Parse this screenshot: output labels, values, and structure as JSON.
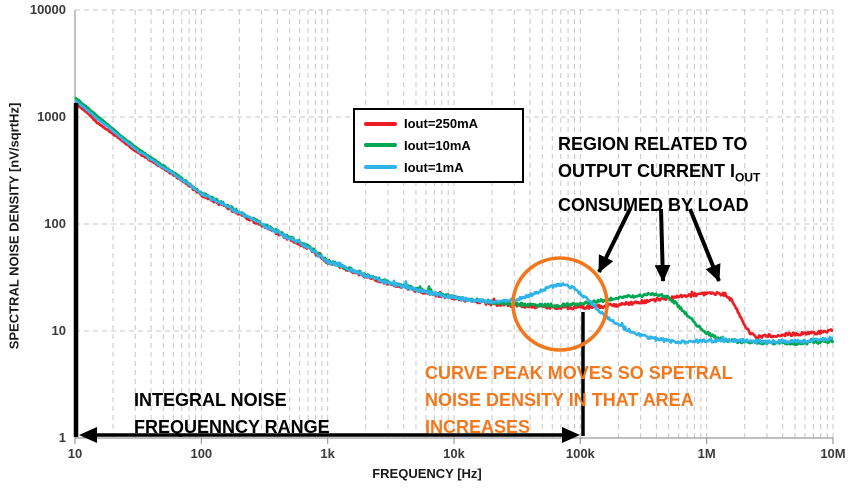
{
  "chart_data": {
    "type": "line",
    "title": "",
    "xlabel": "FREQUENCY [Hz]",
    "ylabel": "SPECTRAL NOISE DENSITY  [nV/sqrtHz]",
    "x_scale": "log",
    "y_scale": "log",
    "xlim": [
      10,
      10000000
    ],
    "ylim": [
      1,
      10000
    ],
    "grid": "log gridlines, dashed light gray, vertical majors+minors, horizontal majors only",
    "legend_position": "inside top, left of center, boxed",
    "x_ticks": [
      {
        "v": 10,
        "label": "10"
      },
      {
        "v": 100,
        "label": "100"
      },
      {
        "v": 1000,
        "label": "1k"
      },
      {
        "v": 10000,
        "label": "10k"
      },
      {
        "v": 100000,
        "label": "100k"
      },
      {
        "v": 1000000,
        "label": "1M"
      },
      {
        "v": 10000000,
        "label": "10M"
      }
    ],
    "y_ticks": [
      {
        "v": 10000,
        "label": "10000"
      },
      {
        "v": 1000,
        "label": "1000"
      },
      {
        "v": 100,
        "label": "100"
      },
      {
        "v": 10,
        "label": "10"
      },
      {
        "v": 1,
        "label": "1"
      }
    ],
    "series": [
      {
        "name": "Iout=250mA",
        "color": "#ed1c24",
        "points": [
          [
            10,
            1350
          ],
          [
            13,
            1050
          ],
          [
            15,
            880
          ],
          [
            18,
            760
          ],
          [
            22,
            640
          ],
          [
            30,
            480
          ],
          [
            40,
            390
          ],
          [
            50,
            330
          ],
          [
            70,
            258
          ],
          [
            100,
            185
          ],
          [
            150,
            148
          ],
          [
            200,
            124
          ],
          [
            300,
            97
          ],
          [
            500,
            72
          ],
          [
            700,
            60
          ],
          [
            1000,
            44
          ],
          [
            1500,
            37
          ],
          [
            2000,
            32.5
          ],
          [
            3000,
            28
          ],
          [
            5000,
            24
          ],
          [
            7000,
            22
          ],
          [
            10000,
            20.3
          ],
          [
            15000,
            18.8
          ],
          [
            20000,
            18
          ],
          [
            30000,
            17.3
          ],
          [
            50000,
            16.8
          ],
          [
            70000,
            16.6
          ],
          [
            100000,
            16.6
          ],
          [
            150000,
            17
          ],
          [
            200000,
            17.6
          ],
          [
            300000,
            18.6
          ],
          [
            400000,
            19.6
          ],
          [
            500000,
            20.4
          ],
          [
            700000,
            21.4
          ],
          [
            900000,
            22
          ],
          [
            1200000,
            22.3
          ],
          [
            1400000,
            22
          ],
          [
            1600000,
            19
          ],
          [
            1800000,
            14.5
          ],
          [
            2000000,
            11.5
          ],
          [
            2200000,
            9.5
          ],
          [
            2500000,
            8.7
          ],
          [
            3000000,
            9
          ],
          [
            4000000,
            9.2
          ],
          [
            6000000,
            9.5
          ],
          [
            8000000,
            9.7
          ],
          [
            10000000,
            10.2
          ]
        ]
      },
      {
        "name": "Iout=10mA",
        "color": "#00a651",
        "points": [
          [
            10,
            1520
          ],
          [
            13,
            1180
          ],
          [
            15,
            1020
          ],
          [
            18,
            860
          ],
          [
            22,
            700
          ],
          [
            30,
            525
          ],
          [
            40,
            415
          ],
          [
            50,
            348
          ],
          [
            70,
            268
          ],
          [
            100,
            196
          ],
          [
            150,
            155
          ],
          [
            200,
            130
          ],
          [
            300,
            101
          ],
          [
            500,
            75
          ],
          [
            700,
            62.5
          ],
          [
            1000,
            45
          ],
          [
            1500,
            38
          ],
          [
            2000,
            33.5
          ],
          [
            3000,
            28.8
          ],
          [
            5000,
            24.6
          ],
          [
            7000,
            22.6
          ],
          [
            10000,
            20.8
          ],
          [
            15000,
            19.3
          ],
          [
            20000,
            18.5
          ],
          [
            30000,
            17.8
          ],
          [
            50000,
            17.3
          ],
          [
            70000,
            17.4
          ],
          [
            100000,
            17.9
          ],
          [
            150000,
            19.2
          ],
          [
            200000,
            20.4
          ],
          [
            300000,
            21.6
          ],
          [
            400000,
            22
          ],
          [
            480000,
            21
          ],
          [
            560000,
            18.5
          ],
          [
            650000,
            15.5
          ],
          [
            800000,
            12
          ],
          [
            1000000,
            9.6
          ],
          [
            1200000,
            8.6
          ],
          [
            1500000,
            8.1
          ],
          [
            2000000,
            7.9
          ],
          [
            3000000,
            7.8
          ],
          [
            5000000,
            7.7
          ],
          [
            7000000,
            7.8
          ],
          [
            10000000,
            8
          ]
        ]
      },
      {
        "name": "Iout=1mA",
        "color": "#2fb4e9",
        "points": [
          [
            10,
            1430
          ],
          [
            13,
            1120
          ],
          [
            15,
            960
          ],
          [
            18,
            820
          ],
          [
            22,
            670
          ],
          [
            30,
            505
          ],
          [
            40,
            400
          ],
          [
            50,
            340
          ],
          [
            70,
            262
          ],
          [
            100,
            192
          ],
          [
            150,
            152
          ],
          [
            200,
            127
          ],
          [
            300,
            99
          ],
          [
            500,
            73.5
          ],
          [
            700,
            61.5
          ],
          [
            1000,
            44.5
          ],
          [
            1500,
            37.5
          ],
          [
            2000,
            33
          ],
          [
            3000,
            28.4
          ],
          [
            5000,
            24.3
          ],
          [
            7000,
            22.3
          ],
          [
            10000,
            20.6
          ],
          [
            15000,
            19.2
          ],
          [
            20000,
            18.8
          ],
          [
            30000,
            19.6
          ],
          [
            40000,
            21.5
          ],
          [
            50000,
            24
          ],
          [
            60000,
            26.2
          ],
          [
            70000,
            27
          ],
          [
            80000,
            26.6
          ],
          [
            90000,
            25
          ],
          [
            100000,
            22.5
          ],
          [
            120000,
            18.5
          ],
          [
            150000,
            14.5
          ],
          [
            200000,
            11.3
          ],
          [
            250000,
            9.9
          ],
          [
            300000,
            9.1
          ],
          [
            400000,
            8.4
          ],
          [
            500000,
            8.1
          ],
          [
            700000,
            7.9
          ],
          [
            1000000,
            8.1
          ],
          [
            1500000,
            8.2
          ],
          [
            2000000,
            8.1
          ],
          [
            3000000,
            7.9
          ],
          [
            4000000,
            8
          ],
          [
            6000000,
            8.1
          ],
          [
            8000000,
            8.3
          ],
          [
            10000000,
            8.6
          ]
        ]
      }
    ]
  },
  "annotations": {
    "region_note": {
      "line1": "REGION RELATED TO",
      "line2": "OUTPUT CURRENT I",
      "line2_sub": "OUT",
      "line3": "CONSUMED BY LOAD",
      "color": "#000000"
    },
    "orange_note": {
      "line1": "CURVE PEAK MOVES SO SPETRAL",
      "line2": "NOISE DENSITY IN THAT AREA",
      "line3": "INCREASES",
      "color": "#f2781e"
    },
    "integral_note": {
      "line1": "INTEGRAL NOISE",
      "line2": "FREQUENNCY RANGE",
      "color": "#000000"
    },
    "highlight_circle_color": "#f2781e"
  }
}
